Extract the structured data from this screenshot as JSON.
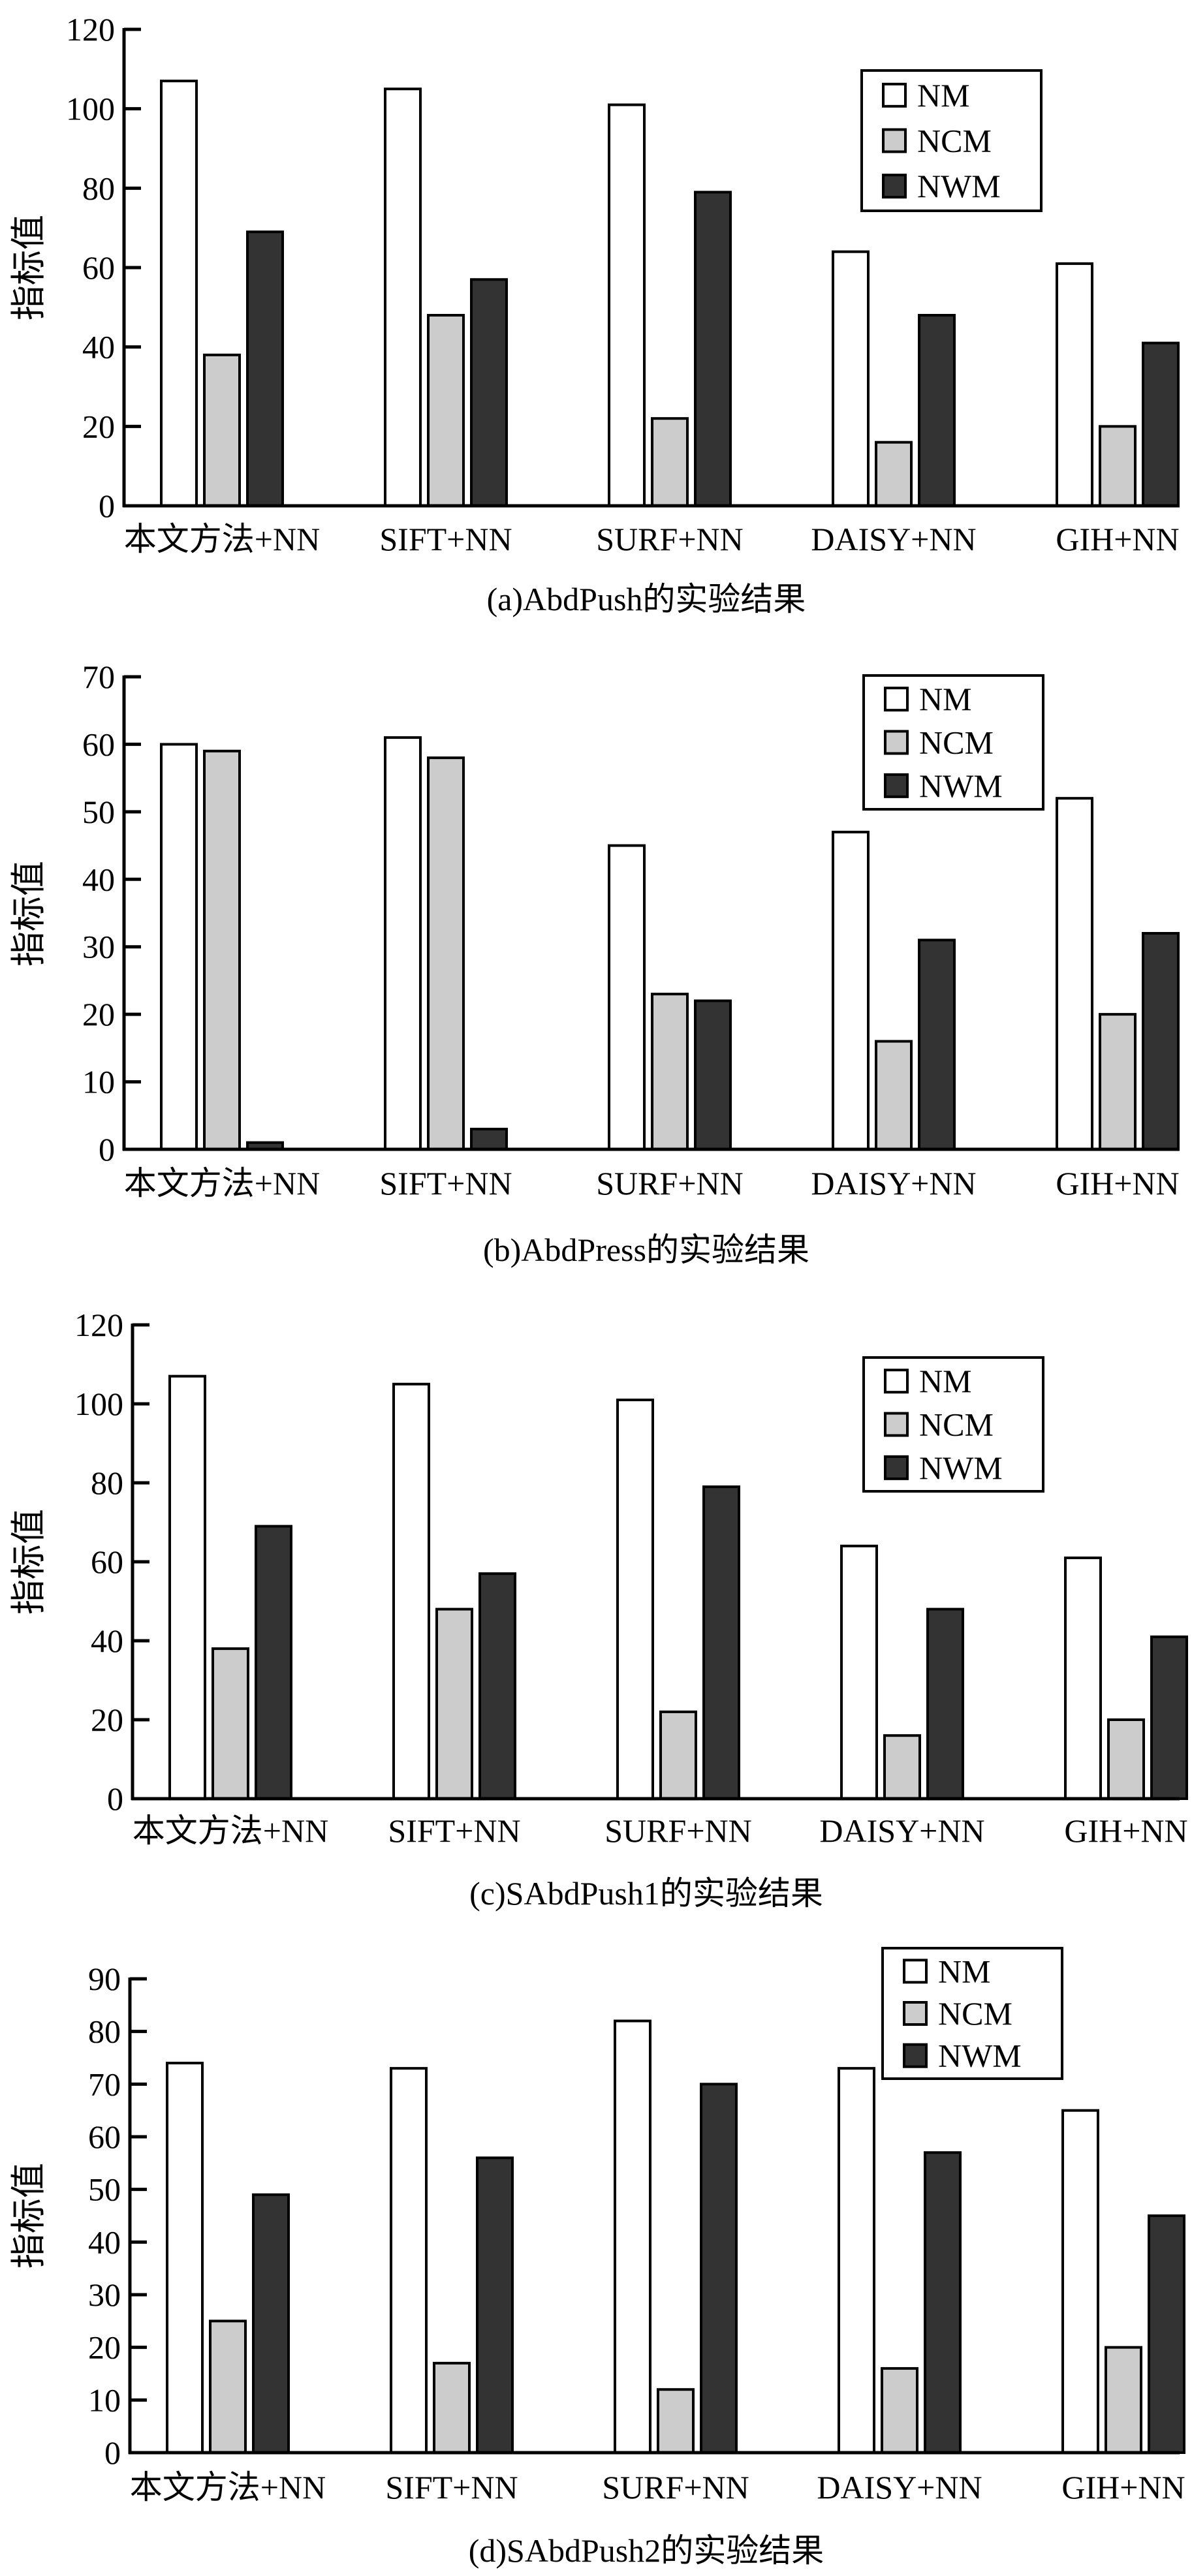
{
  "series_colors": {
    "NM": "#ffffff",
    "NCM": "#cccccc",
    "NWM": "#333333"
  },
  "stroke_color": "#000000",
  "chart_data": [
    {
      "type": "bar",
      "caption": "(a)AbdPush的实验结果",
      "ylabel": "指标值",
      "xlabel": "",
      "categories": [
        "本文方法+NN",
        "SIFT+NN",
        "SURF+NN",
        "DAISY+NN",
        "GIH+NN"
      ],
      "ylim": [
        0,
        120
      ],
      "yticks": [
        0,
        20,
        40,
        60,
        80,
        100,
        120
      ],
      "grid": false,
      "legend_position": "top-right",
      "series": [
        {
          "name": "NM",
          "values": [
            107,
            105,
            101,
            64,
            61
          ]
        },
        {
          "name": "NCM",
          "values": [
            38,
            48,
            22,
            16,
            20
          ]
        },
        {
          "name": "NWM",
          "values": [
            69,
            57,
            79,
            48,
            41
          ]
        }
      ]
    },
    {
      "type": "bar",
      "caption": "(b)AbdPress的实验结果",
      "ylabel": "指标值",
      "xlabel": "",
      "categories": [
        "本文方法+NN",
        "SIFT+NN",
        "SURF+NN",
        "DAISY+NN",
        "GIH+NN"
      ],
      "ylim": [
        0,
        70
      ],
      "yticks": [
        0,
        10,
        20,
        30,
        40,
        50,
        60,
        70
      ],
      "grid": false,
      "legend_position": "top-right",
      "series": [
        {
          "name": "NM",
          "values": [
            60,
            61,
            45,
            47,
            52
          ]
        },
        {
          "name": "NCM",
          "values": [
            59,
            58,
            23,
            16,
            20
          ]
        },
        {
          "name": "NWM",
          "values": [
            1,
            3,
            22,
            31,
            32
          ]
        }
      ]
    },
    {
      "type": "bar",
      "caption": "(c)SAbdPush1的实验结果",
      "ylabel": "指标值",
      "xlabel": "",
      "categories": [
        "本文方法+NN",
        "SIFT+NN",
        "SURF+NN",
        "DAISY+NN",
        "GIH+NN"
      ],
      "ylim": [
        0,
        120
      ],
      "yticks": [
        0,
        20,
        40,
        60,
        80,
        100,
        120
      ],
      "grid": false,
      "legend_position": "top-right",
      "series": [
        {
          "name": "NM",
          "values": [
            107,
            105,
            101,
            64,
            61
          ]
        },
        {
          "name": "NCM",
          "values": [
            38,
            48,
            22,
            16,
            20
          ]
        },
        {
          "name": "NWM",
          "values": [
            69,
            57,
            79,
            48,
            41
          ]
        }
      ]
    },
    {
      "type": "bar",
      "caption": "(d)SAbdPush2的实验结果",
      "ylabel": "指标值",
      "xlabel": "",
      "categories": [
        "本文方法+NN",
        "SIFT+NN",
        "SURF+NN",
        "DAISY+NN",
        "GIH+NN"
      ],
      "ylim": [
        0,
        90
      ],
      "yticks": [
        0,
        10,
        20,
        30,
        40,
        50,
        60,
        70,
        80,
        90
      ],
      "grid": false,
      "legend_position": "top-right",
      "series": [
        {
          "name": "NM",
          "values": [
            74,
            73,
            82,
            73,
            65
          ]
        },
        {
          "name": "NCM",
          "values": [
            25,
            17,
            12,
            16,
            20
          ]
        },
        {
          "name": "NWM",
          "values": [
            49,
            56,
            70,
            57,
            45
          ]
        }
      ]
    }
  ]
}
